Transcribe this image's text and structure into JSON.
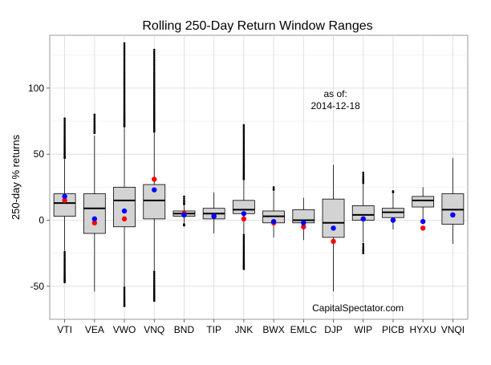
{
  "chart_data": {
    "type": "boxplot",
    "title": "Rolling 250-Day Return Window Ranges",
    "xlabel": "",
    "ylabel": "250-day % returns",
    "ylim": [
      -75,
      140
    ],
    "yticks": [
      -50,
      0,
      50,
      100
    ],
    "grid": true,
    "annotation": {
      "line1": "as of:",
      "line2": "2014-12-18",
      "at": [
        14.0,
        93
      ]
    },
    "watermark": {
      "text": "CapitalSpectator.com",
      "at": [
        12.0,
        -67
      ]
    },
    "categories": [
      "VTI",
      "VEA",
      "VWO",
      "VNQ",
      "BND",
      "TIP",
      "JNK",
      "BWX",
      "EMLC",
      "DJP",
      "WIP",
      "PICB",
      "HYXU",
      "VNQI"
    ],
    "markers": [
      {
        "color": "#0000ff",
        "meaning": "blue"
      },
      {
        "color": "#ff0000",
        "meaning": "red"
      }
    ],
    "series": [
      {
        "name": "VTI",
        "min": -23,
        "q1": 3,
        "median": 13,
        "q3": 20,
        "max": 46,
        "blue": 18,
        "red": 15,
        "outliers": [
          {
            "from": 47,
            "to": 77
          },
          {
            "from": -24,
            "to": -47
          }
        ]
      },
      {
        "name": "VEA",
        "min": -54,
        "q1": -10,
        "median": 9,
        "q3": 20,
        "max": 64,
        "blue": 1,
        "red": -2,
        "outliers": [
          {
            "from": 66,
            "to": 80
          }
        ]
      },
      {
        "name": "VWO",
        "min": -50,
        "q1": -5,
        "median": 15,
        "q3": 25,
        "max": 70,
        "blue": 7,
        "red": 1,
        "outliers": [
          {
            "from": 71,
            "to": 134
          },
          {
            "from": -51,
            "to": -65
          }
        ]
      },
      {
        "name": "VNQ",
        "min": -38,
        "q1": 1,
        "median": 15,
        "q3": 27,
        "max": 66,
        "blue": 23,
        "red": 31,
        "outliers": [
          {
            "from": 67,
            "to": 129
          },
          {
            "from": -39,
            "to": -61
          }
        ]
      },
      {
        "name": "BND",
        "min": -2,
        "q1": 3,
        "median": 5,
        "q3": 7,
        "max": 11,
        "blue": 4,
        "red": 5,
        "outliers": [
          {
            "from": 12,
            "to": 18
          },
          {
            "from": -3,
            "to": -4
          }
        ]
      },
      {
        "name": "TIP",
        "min": -10,
        "q1": 1,
        "median": 5,
        "q3": 9,
        "max": 21,
        "blue": 3,
        "red": 3,
        "outliers": []
      },
      {
        "name": "JNK",
        "min": -10,
        "q1": 5,
        "median": 8,
        "q3": 15,
        "max": 30,
        "blue": 5,
        "red": 1,
        "outliers": [
          {
            "from": 31,
            "to": 72
          },
          {
            "from": -11,
            "to": -37
          }
        ]
      },
      {
        "name": "BWX",
        "min": -13,
        "q1": -2,
        "median": 3,
        "q3": 7,
        "max": 22,
        "blue": -1,
        "red": -2,
        "outliers": [
          {
            "from": 23,
            "to": 25
          }
        ]
      },
      {
        "name": "EMLC",
        "min": -15,
        "q1": -2,
        "median": 0,
        "q3": 8,
        "max": 17,
        "blue": -2,
        "red": -5,
        "outliers": []
      },
      {
        "name": "DJP",
        "min": -54,
        "q1": -13,
        "median": -2,
        "q3": 16,
        "max": 42,
        "blue": -6,
        "red": -16,
        "outliers": []
      },
      {
        "name": "WIP",
        "min": -17,
        "q1": 0,
        "median": 4,
        "q3": 11,
        "max": 27,
        "blue": 1,
        "red": 1,
        "outliers": [
          {
            "from": 28,
            "to": 36
          },
          {
            "from": -18,
            "to": -25
          }
        ]
      },
      {
        "name": "PICB",
        "min": -7,
        "q1": 2,
        "median": 6,
        "q3": 9,
        "max": 20,
        "blue": 0,
        "red": 0,
        "outliers": [
          {
            "from": 21,
            "to": 22
          }
        ]
      },
      {
        "name": "HYXU",
        "min": -2,
        "q1": 10,
        "median": 15,
        "q3": 18,
        "max": 25,
        "blue": -1,
        "red": -6,
        "outliers": []
      },
      {
        "name": "VNQI",
        "min": -18,
        "q1": -3,
        "median": 8,
        "q3": 20,
        "max": 47,
        "blue": 4,
        "red": 4,
        "outliers": []
      }
    ]
  }
}
